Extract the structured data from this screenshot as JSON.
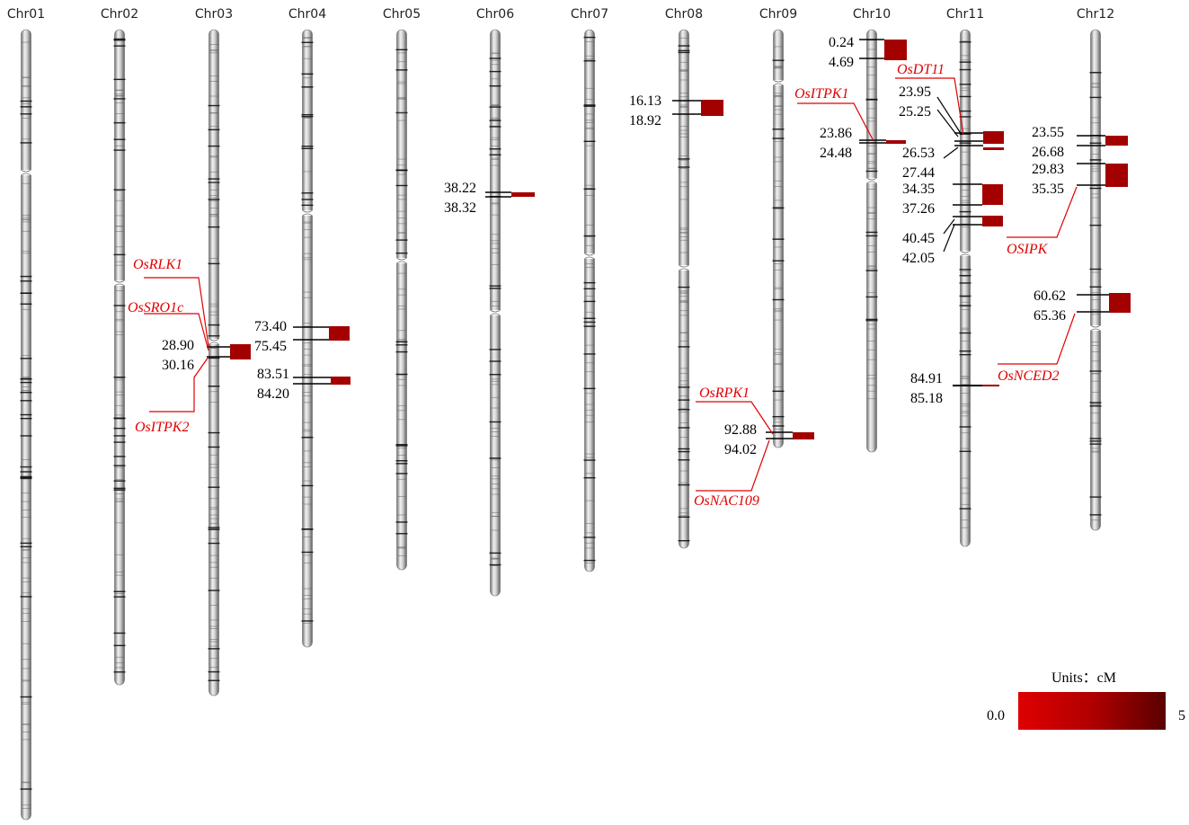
{
  "chromosomes": [
    {
      "id": "chr01",
      "name": "Chr01"
    },
    {
      "id": "chr02",
      "name": "Chr02"
    },
    {
      "id": "chr03",
      "name": "Chr03"
    },
    {
      "id": "chr04",
      "name": "Chr04"
    },
    {
      "id": "chr05",
      "name": "Chr05"
    },
    {
      "id": "chr06",
      "name": "Chr06"
    },
    {
      "id": "chr07",
      "name": "Chr07"
    },
    {
      "id": "chr08",
      "name": "Chr08"
    },
    {
      "id": "chr09",
      "name": "Chr09"
    },
    {
      "id": "chr10",
      "name": "Chr10"
    },
    {
      "id": "chr11",
      "name": "Chr11"
    },
    {
      "id": "chr12",
      "name": "Chr12"
    }
  ],
  "positions": {
    "chr03_a": "28.90",
    "chr03_b": "30.16",
    "chr04_a": "73.40",
    "chr04_b": "75.45",
    "chr04_c": "83.51",
    "chr04_d": "84.20",
    "chr06_a": "38.22",
    "chr06_b": "38.32",
    "chr08_a": "16.13",
    "chr08_b": "18.92",
    "chr09_a": "92.88",
    "chr09_b": "94.02",
    "chr10_a": "0.24",
    "chr10_b": "4.69",
    "chr10_c": "23.86",
    "chr10_d": "24.48",
    "chr11_a": "23.95",
    "chr11_b": "25.25",
    "chr11_c": "26.53",
    "chr11_d": "27.44",
    "chr11_e": "34.35",
    "chr11_f": "37.26",
    "chr11_g": "40.45",
    "chr11_h": "42.05",
    "chr11_i": "84.91",
    "chr11_j": "85.18",
    "chr12_a": "23.55",
    "chr12_b": "26.68",
    "chr12_c": "29.83",
    "chr12_d": "35.35",
    "chr12_e": "60.62",
    "chr12_f": "65.36"
  },
  "genes": {
    "osrlk1": "OsRLK1",
    "ossro1c": "OsSRO1c",
    "ositpk2": "OsITPK2",
    "osrpk1": "OsRPK1",
    "osnac109": "OsNAC109",
    "ositpk1": "OsITPK1",
    "osdt11": "OsDT11",
    "osipk": "OSIPK",
    "osnced2": "OsNCED2"
  },
  "legend": {
    "units": "Units：cM",
    "min": "0.0",
    "max": "5",
    "color_low": "#e00000",
    "color_high": "#5a0000"
  },
  "colors": {
    "qtl_block": "#a30000",
    "gene_line": "#e00000"
  }
}
